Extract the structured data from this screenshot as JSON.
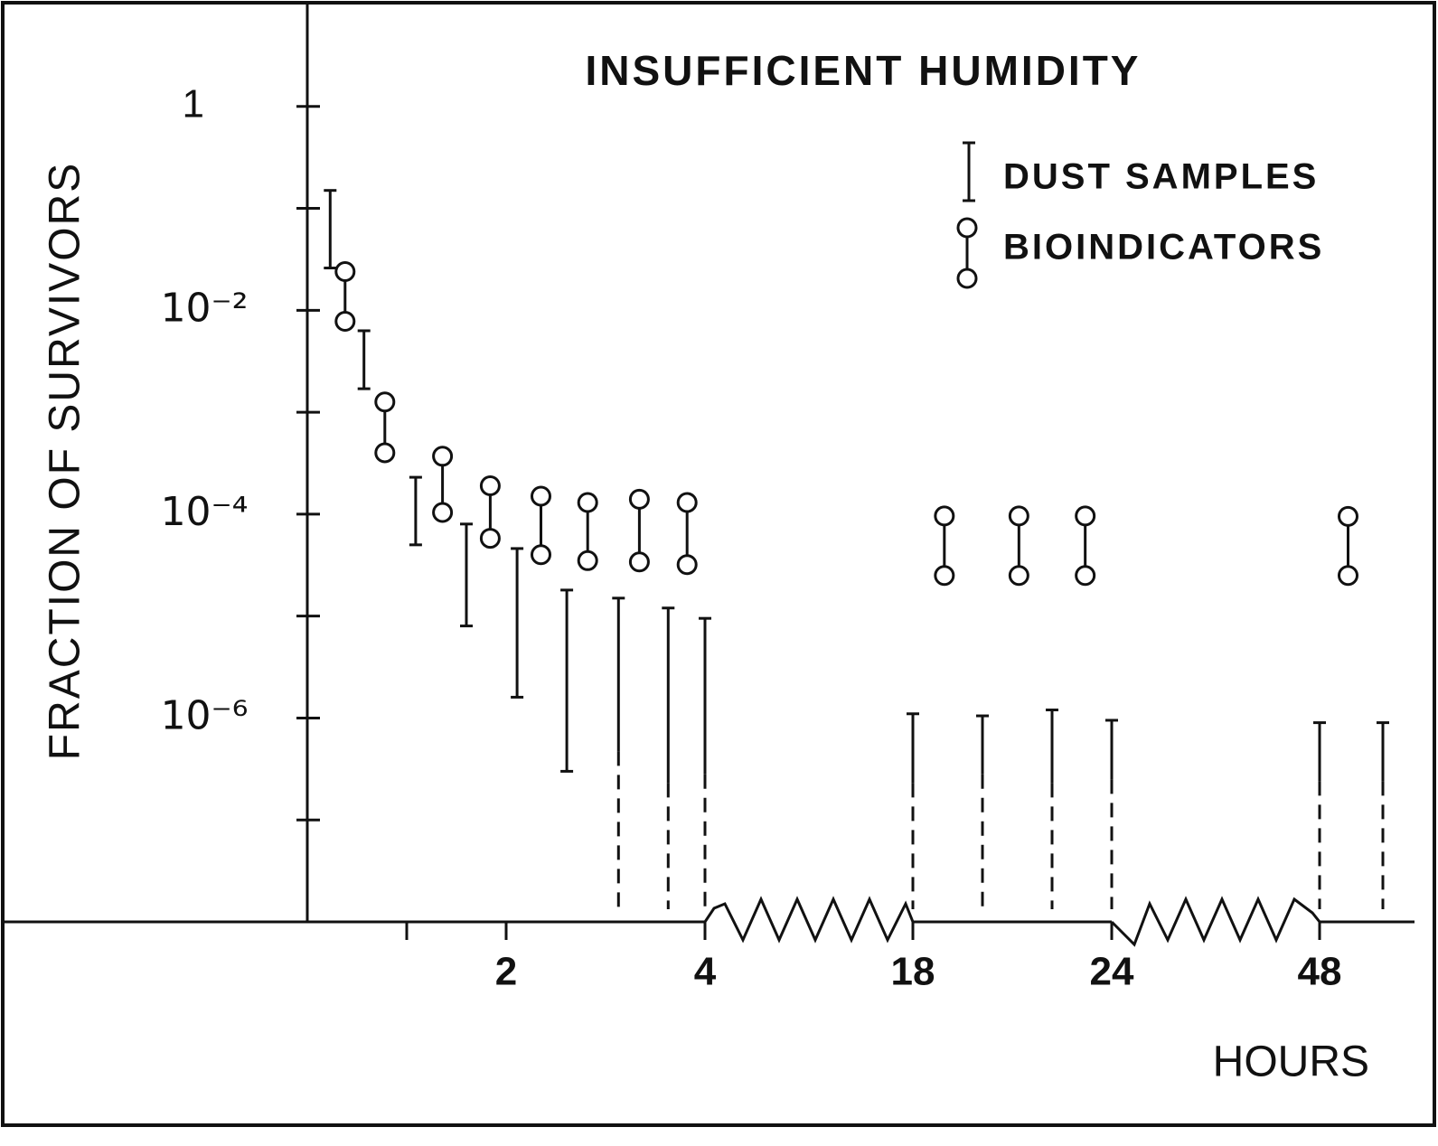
{
  "chart_data": {
    "type": "errorbar",
    "title": "INSUFFICIENT HUMIDITY",
    "ylabel": "FRACTION OF SURVIVORS",
    "xlabel": "HOURS",
    "ylog": true,
    "ylim": [
      1e-08,
      10
    ],
    "yticks": [
      1,
      {
        "value": 0.01,
        "label": "10⁻²"
      },
      {
        "value": 0.0001,
        "label": "10⁻⁴"
      },
      {
        "value": 1e-06,
        "label": "10⁻⁶"
      }
    ],
    "yminorticks": [
      0.1,
      0.001,
      1e-05,
      1e-07
    ],
    "xsegments": [
      [
        0,
        4
      ],
      [
        18,
        24
      ],
      [
        48,
        51
      ]
    ],
    "xticks": [
      2,
      4,
      18,
      24,
      48
    ],
    "xminorticks": [
      1
    ],
    "color": "#111111",
    "series": [
      {
        "name": "DUST SAMPLES",
        "kind": "bar",
        "x": [
          0.23,
          0.57,
          1.09,
          1.6,
          2.11,
          2.61,
          3.13,
          3.63,
          4,
          18,
          20.1,
          22.2,
          24,
          48,
          50
        ],
        "high": [
          0.15,
          0.0063,
          0.00023,
          8e-05,
          4.6e-05,
          1.8e-05,
          1.5e-05,
          1.2e-05,
          9.5e-06,
          1.1e-06,
          1.05e-06,
          1.2e-06,
          9.5e-07,
          9e-07,
          9e-07
        ],
        "low": [
          0.026,
          0.0017,
          5e-05,
          8e-06,
          1.6e-06,
          3e-07,
          4.7e-07,
          2.3e-07,
          2.8e-07,
          2.3e-07,
          2.8e-07,
          2.3e-07,
          2.5e-07,
          2.4e-07,
          2.4e-07
        ],
        "open": [
          false,
          false,
          false,
          false,
          false,
          false,
          true,
          true,
          true,
          true,
          true,
          true,
          true,
          true,
          true
        ]
      },
      {
        "name": "BIOINDICATORS",
        "kind": "pair",
        "x": [
          0.38,
          0.78,
          1.36,
          1.84,
          2.35,
          2.82,
          3.34,
          3.82,
          18.95,
          21.2,
          23.2,
          48.9
        ],
        "high": [
          0.024,
          0.00126,
          0.00037,
          0.00019,
          0.00015,
          0.00013,
          0.00014,
          0.00013,
          9.6e-05,
          9.6e-05,
          9.6e-05,
          9.5e-05
        ],
        "low": [
          0.0078,
          0.0004,
          0.000104,
          5.8e-05,
          4e-05,
          3.5e-05,
          3.4e-05,
          3.2e-05,
          2.5e-05,
          2.5e-05,
          2.5e-05,
          2.5e-05
        ]
      }
    ]
  }
}
